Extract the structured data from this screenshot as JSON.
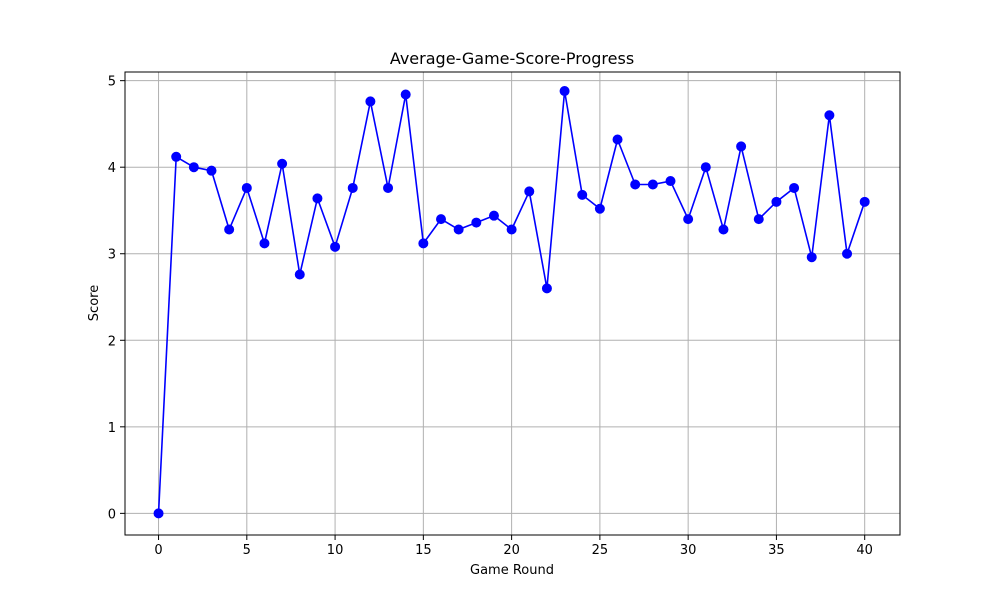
{
  "chart_data": {
    "type": "line",
    "title": "Average-Game-Score-Progress",
    "xlabel": "Game Round",
    "ylabel": "Score",
    "xlim": [
      -1.9,
      42
    ],
    "ylim": [
      -0.25,
      5.1
    ],
    "xticks": [
      0,
      5,
      10,
      15,
      20,
      25,
      30,
      35,
      40
    ],
    "yticks": [
      0,
      1,
      2,
      3,
      4,
      5
    ],
    "grid": true,
    "series": [
      {
        "color": "#0000ff",
        "marker": "circle",
        "x": [
          0,
          1,
          2,
          3,
          4,
          5,
          6,
          7,
          8,
          9,
          10,
          11,
          12,
          13,
          14,
          15,
          16,
          17,
          18,
          19,
          20,
          21,
          22,
          23,
          24,
          25,
          26,
          27,
          28,
          29,
          30,
          31,
          32,
          33,
          34,
          35,
          36,
          37,
          38,
          39,
          40
        ],
        "values": [
          0.0,
          4.12,
          4.0,
          3.96,
          3.28,
          3.76,
          3.12,
          4.04,
          2.76,
          3.64,
          3.08,
          3.76,
          4.76,
          3.76,
          4.84,
          3.12,
          3.4,
          3.28,
          3.36,
          3.44,
          3.28,
          3.72,
          2.6,
          4.88,
          3.68,
          3.52,
          4.32,
          3.8,
          3.8,
          3.84,
          3.4,
          4.0,
          3.28,
          4.24,
          3.4,
          3.6,
          3.76,
          2.96,
          4.6,
          3.0,
          3.6
        ]
      }
    ]
  }
}
